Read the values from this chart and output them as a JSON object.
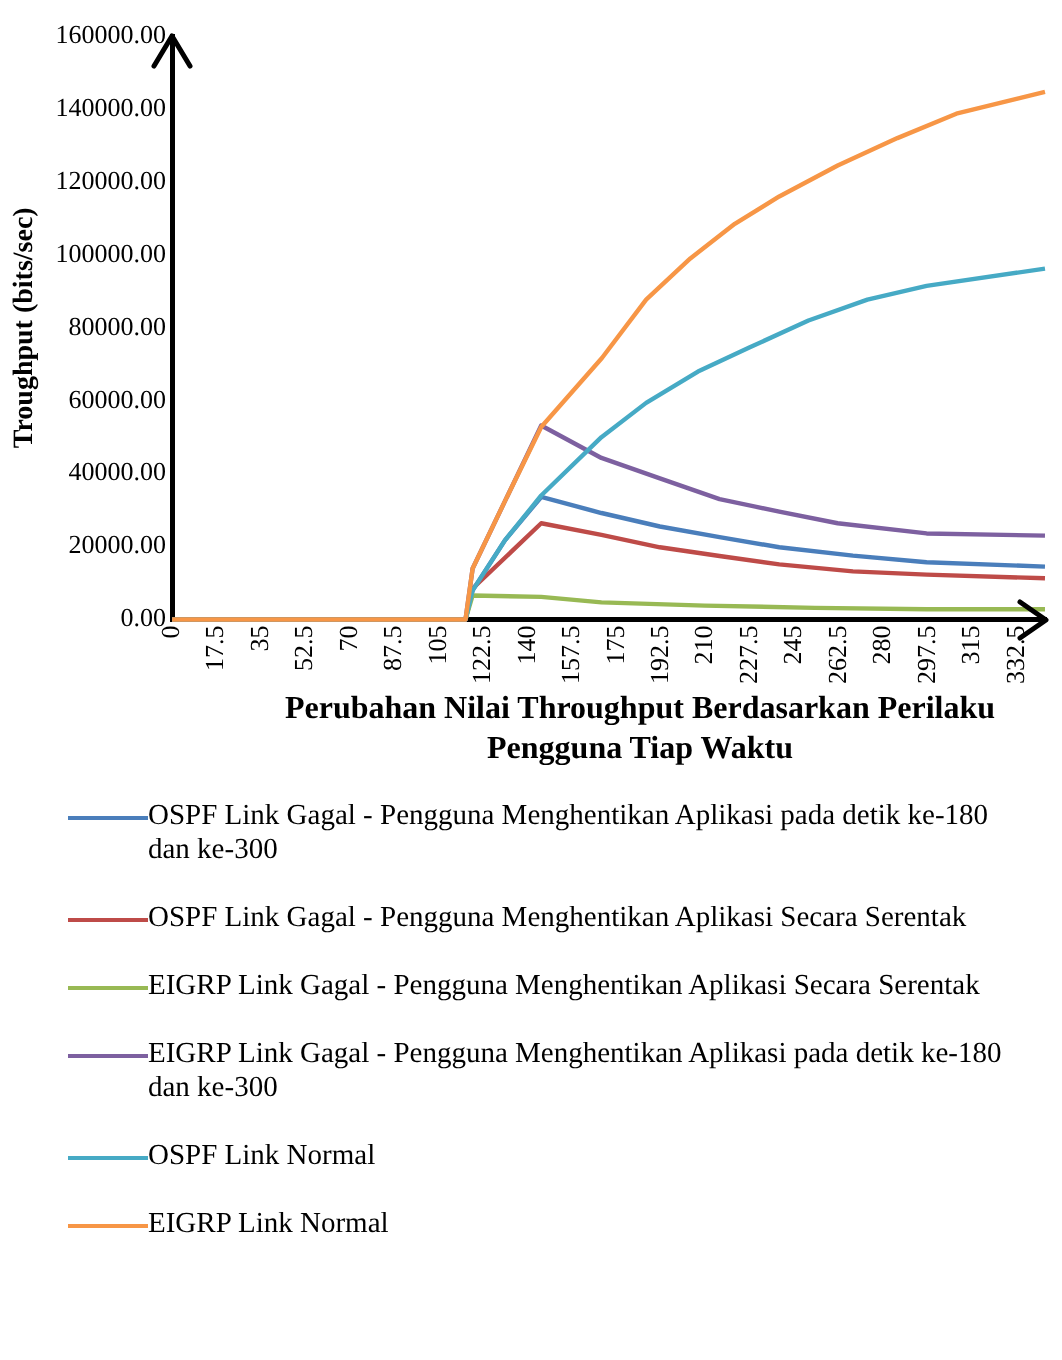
{
  "chart_data": {
    "type": "line",
    "xlabel": "Perubahan Nilai Throughput Berdasarkan Perilaku Pengguna Tiap Waktu",
    "ylabel": "Troughput (bits/sec)",
    "xlim": [
      0,
      344
    ],
    "xticks": [
      0,
      17.5,
      35,
      52.5,
      70,
      87.5,
      105,
      122.5,
      140,
      157.5,
      175,
      192.5,
      210,
      227.5,
      245,
      262.5,
      280,
      297.5,
      315,
      332.5
    ],
    "ylim": [
      0,
      160000
    ],
    "yticks": [
      {
        "value": 0,
        "label": "0.00"
      },
      {
        "value": 20000,
        "label": "20000.00"
      },
      {
        "value": 40000,
        "label": "40000.00"
      },
      {
        "value": 60000,
        "label": "60000.00"
      },
      {
        "value": 80000,
        "label": "80000.00"
      },
      {
        "value": 100000,
        "label": "100000.00"
      },
      {
        "value": 120000,
        "label": "120000.00"
      },
      {
        "value": 140000,
        "label": "140000.00"
      },
      {
        "value": 160000,
        "label": "160000.00"
      }
    ],
    "grid": false,
    "legend": "bottom",
    "marker": "none",
    "line_style": "solid",
    "series": [
      {
        "name": "OSPF Link Gagal - Pengguna Menghentikan Aplikasi pada detik ke-180 dan ke-300",
        "color": "#4a7ebb",
        "x": [
          0,
          115.5,
          118.3,
          131,
          145.3,
          169,
          192,
          215.5,
          239,
          268,
          297,
          343.6
        ],
        "values": [
          0,
          0,
          8000,
          21700,
          33600,
          29200,
          25500,
          22600,
          19800,
          17500,
          15700,
          14500
        ]
      },
      {
        "name": "OSPF Link Gagal - Pengguna Menghentikan Aplikasi Secara Serentak",
        "color": "#be4b48",
        "x": [
          0,
          115.5,
          118.3,
          145.3,
          169,
          192,
          215.5,
          239,
          268,
          297,
          343.6
        ],
        "values": [
          0,
          0,
          8500,
          26400,
          23200,
          19800,
          17400,
          15100,
          13200,
          12300,
          11300
        ]
      },
      {
        "name": "EIGRP Link Gagal - Pengguna Menghentikan Aplikasi Secara Serentak",
        "color": "#98b954",
        "x": [
          0,
          115.5,
          118.3,
          145.3,
          169,
          209.6,
          253,
          297,
          343.6
        ],
        "values": [
          0,
          0,
          6600,
          6200,
          4700,
          3800,
          3200,
          2800,
          2800
        ]
      },
      {
        "name": "EIGRP Link Gagal - Pengguna Menghentikan Aplikasi pada detik ke-180 dan ke-300",
        "color": "#7d60a0",
        "x": [
          0,
          115.5,
          118.3,
          131.4,
          145.3,
          169,
          192,
          215.5,
          239,
          262,
          297,
          343.6
        ],
        "values": [
          0,
          0,
          14000,
          33000,
          53200,
          44300,
          38700,
          33000,
          29600,
          26400,
          23600,
          23000
        ]
      },
      {
        "name": "OSPF Link Normal",
        "color": "#46aac5",
        "x": [
          0,
          115.5,
          118.3,
          131,
          145.3,
          169,
          186.6,
          207,
          227,
          250.5,
          273.7,
          297,
          343.6
        ],
        "values": [
          0,
          0,
          8000,
          21700,
          34000,
          50000,
          59400,
          68000,
          74500,
          82000,
          87700,
          91500,
          96200
        ]
      },
      {
        "name": "EIGRP Link Normal",
        "color": "#f79646",
        "x": [
          0,
          115.5,
          118.3,
          131.4,
          145.3,
          169.2,
          186.6,
          204,
          221.5,
          239,
          262,
          285.5,
          308.7,
          343.6
        ],
        "values": [
          0,
          0,
          14000,
          33000,
          52800,
          71700,
          87700,
          99000,
          108500,
          116000,
          124500,
          132000,
          138700,
          144700
        ]
      }
    ]
  }
}
